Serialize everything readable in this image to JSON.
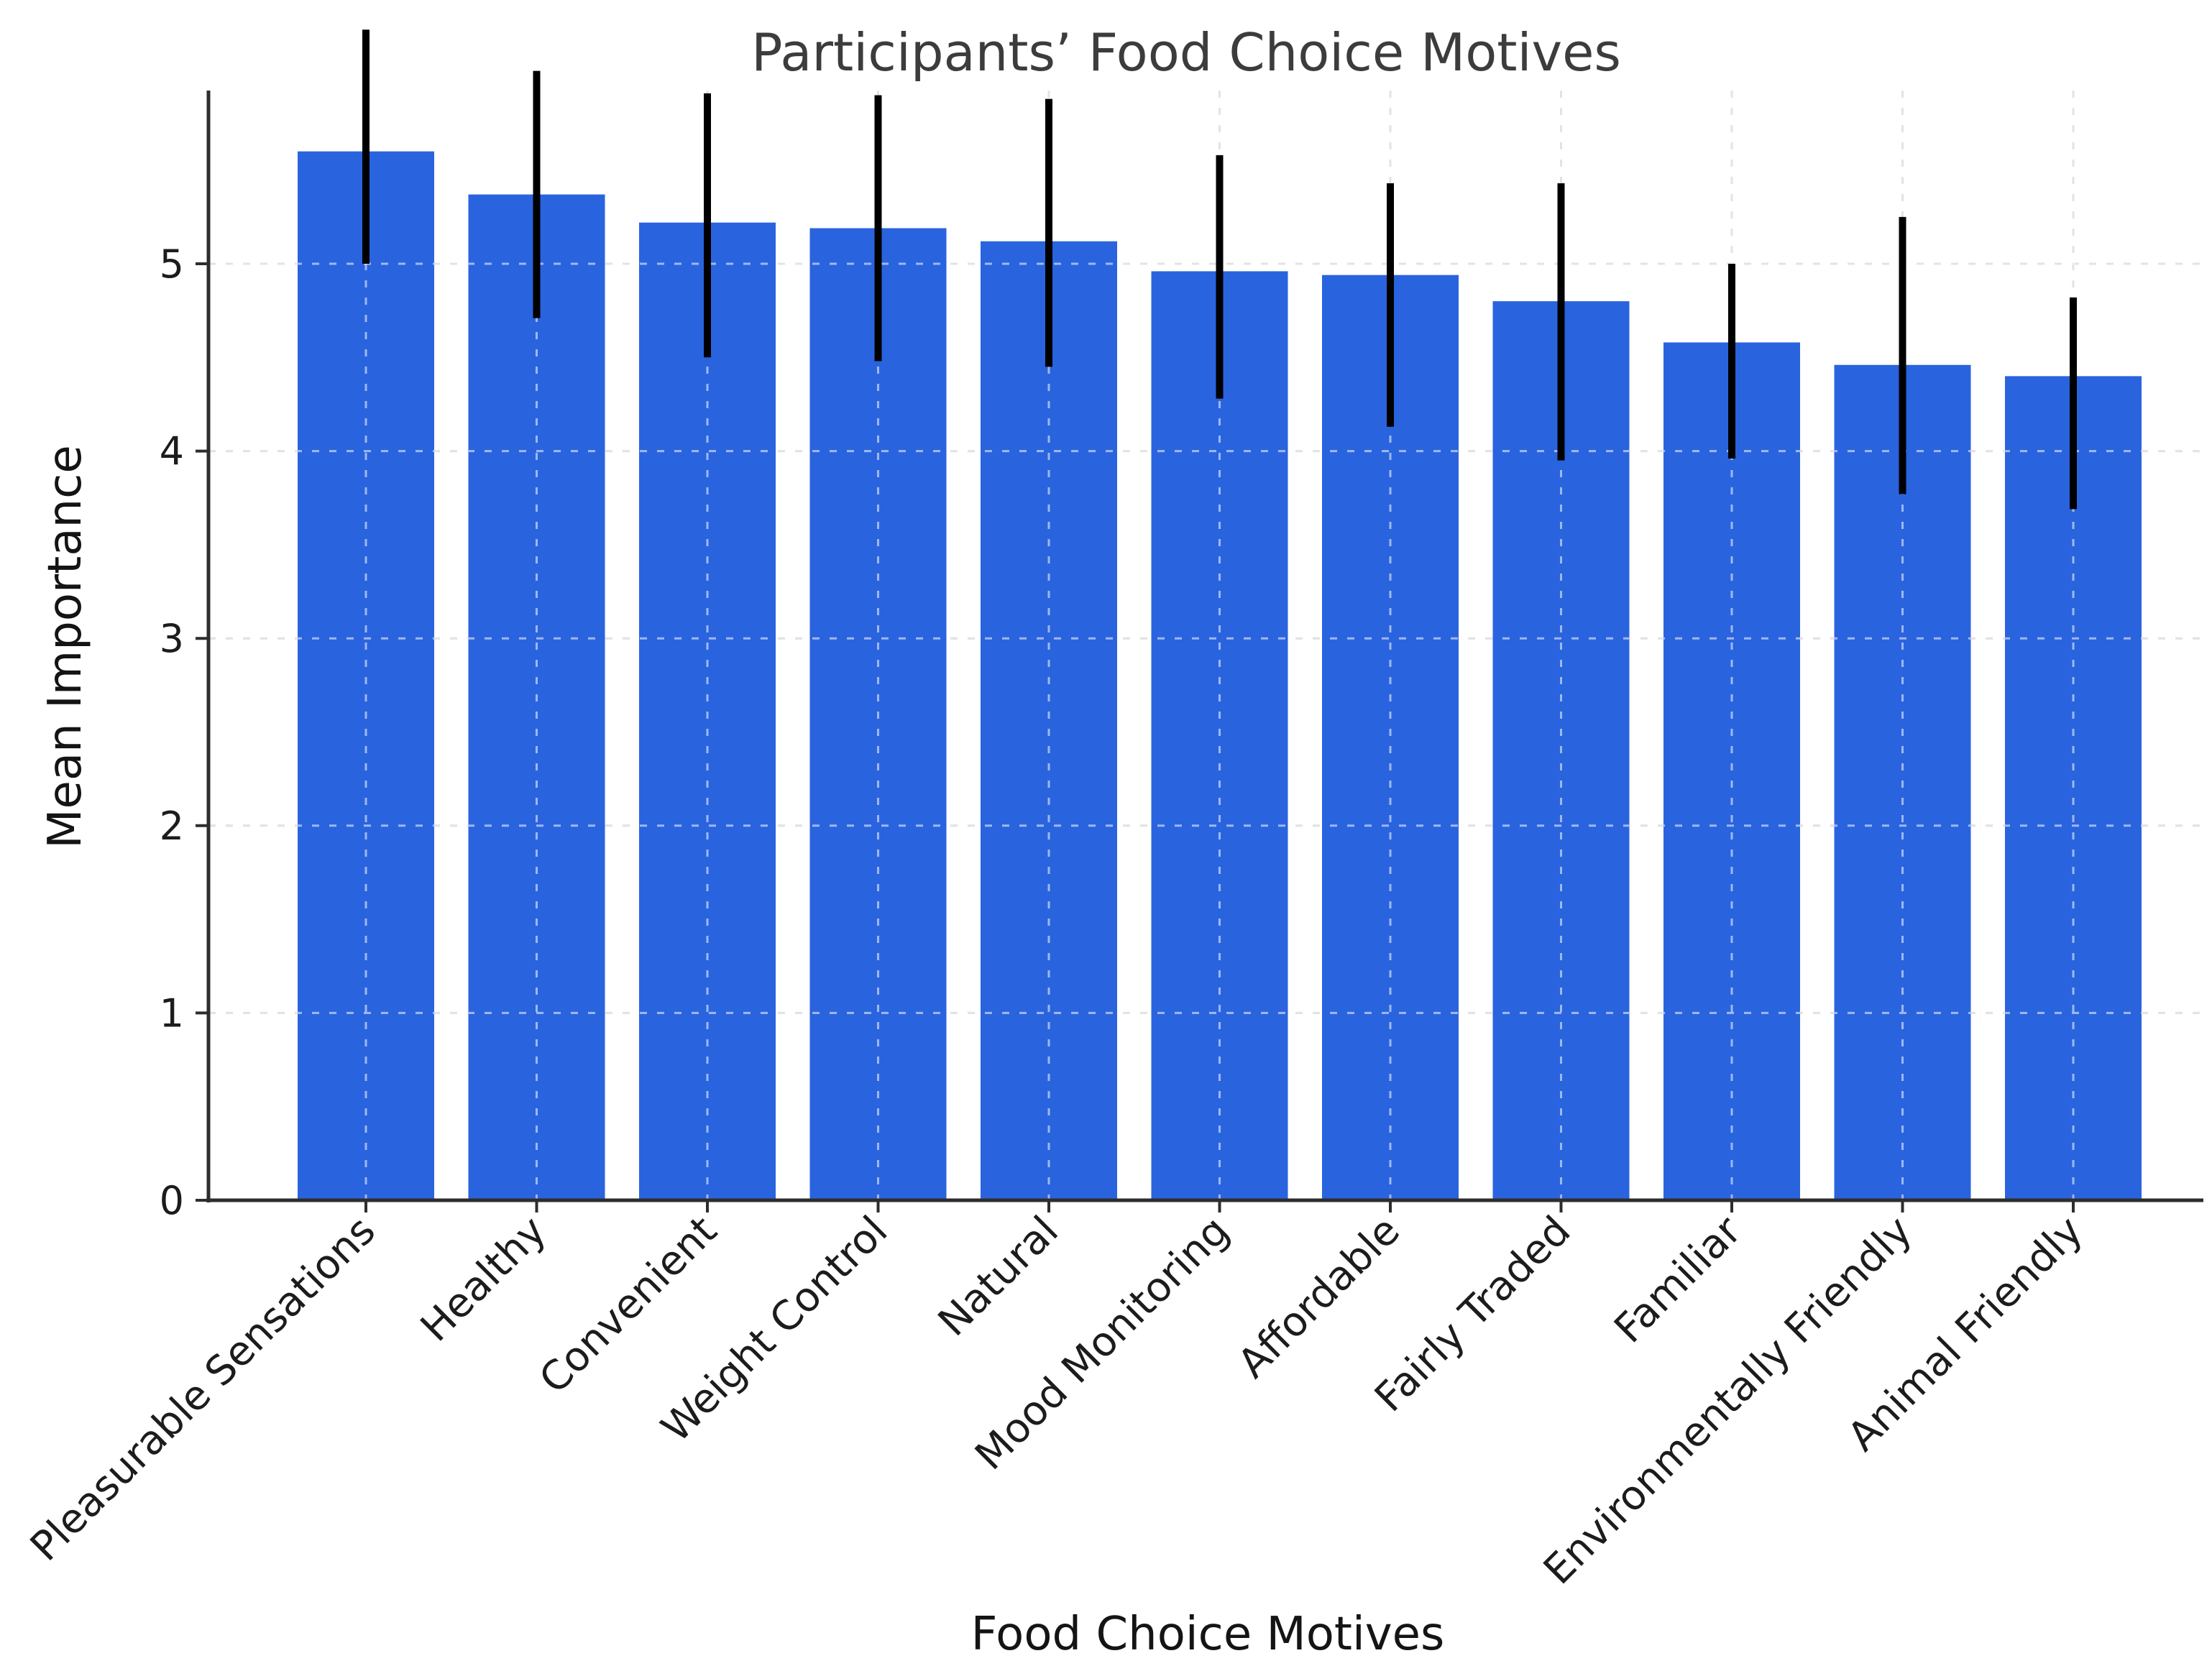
{
  "chart_data": {
    "type": "bar",
    "title": "Participants’ Food Choice Motives",
    "xlabel": "Food Choice Motives",
    "ylabel": "Mean Importance",
    "ylim": [
      0,
      5.9
    ],
    "yticks": [
      0,
      1,
      2,
      3,
      4,
      5
    ],
    "grid": {
      "style": "dashed",
      "axes": "both",
      "drawn_over_bars": true
    },
    "legend": "none",
    "bar_color": "#2a63de",
    "error_bar_color": "#000000",
    "categories": [
      "Pleasurable Sensations",
      "Healthy",
      "Convenient",
      "Weight Control",
      "Natural",
      "Mood Monitoring",
      "Affordable",
      "Fairly Traded",
      "Familiar",
      "Environmentally Friendly",
      "Animal Friendly"
    ],
    "values": [
      5.6,
      5.37,
      5.22,
      5.19,
      5.12,
      4.96,
      4.94,
      4.8,
      4.58,
      4.46,
      4.4
    ],
    "error_whisker_low": [
      5.0,
      4.71,
      4.5,
      4.48,
      4.45,
      4.28,
      4.13,
      3.95,
      3.96,
      3.77,
      3.69
    ],
    "error_whisker_high": [
      6.25,
      6.03,
      5.91,
      5.9,
      5.88,
      5.58,
      5.43,
      5.43,
      5.0,
      5.25,
      4.82
    ]
  }
}
